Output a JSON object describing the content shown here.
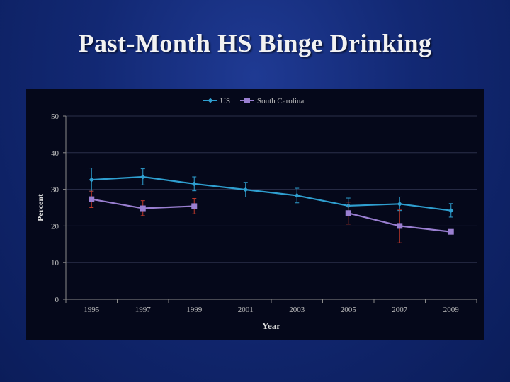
{
  "slide": {
    "title": "Past-Month HS Binge Drinking"
  },
  "colors": {
    "us": "#2f9fd0",
    "sc": "#9a7fd1",
    "sc_error": "#c0392b",
    "axis_text": "#bfbfbf",
    "grid": "#2b2f4a"
  },
  "chart_data": {
    "type": "line",
    "x": [
      "1995",
      "1997",
      "1999",
      "2001",
      "2003",
      "2005",
      "2007",
      "2009"
    ],
    "series": [
      {
        "name": "US",
        "values": [
          32.6,
          33.4,
          31.5,
          29.9,
          28.3,
          25.5,
          26.0,
          24.2
        ],
        "error_low": [
          29.5,
          31.2,
          29.6,
          27.9,
          26.3,
          23.4,
          24.2,
          22.4
        ],
        "error_high": [
          35.8,
          35.6,
          33.4,
          31.9,
          30.3,
          27.6,
          27.9,
          26.1
        ],
        "marker": "diamond"
      },
      {
        "name": "South Carolina",
        "values": [
          27.3,
          24.8,
          25.4,
          null,
          null,
          23.5,
          20.0,
          18.4
        ],
        "error_low": [
          25.0,
          22.8,
          23.3,
          null,
          null,
          20.5,
          15.4,
          null
        ],
        "error_high": [
          29.5,
          26.9,
          27.5,
          null,
          null,
          26.5,
          24.5,
          null
        ],
        "marker": "square"
      }
    ],
    "xlabel": "Year",
    "ylabel": "Percent",
    "ylim": [
      0,
      50
    ],
    "yticks": [
      "0",
      "10",
      "20",
      "30",
      "40",
      "50"
    ],
    "grid": true,
    "legend_position": "top-center"
  }
}
